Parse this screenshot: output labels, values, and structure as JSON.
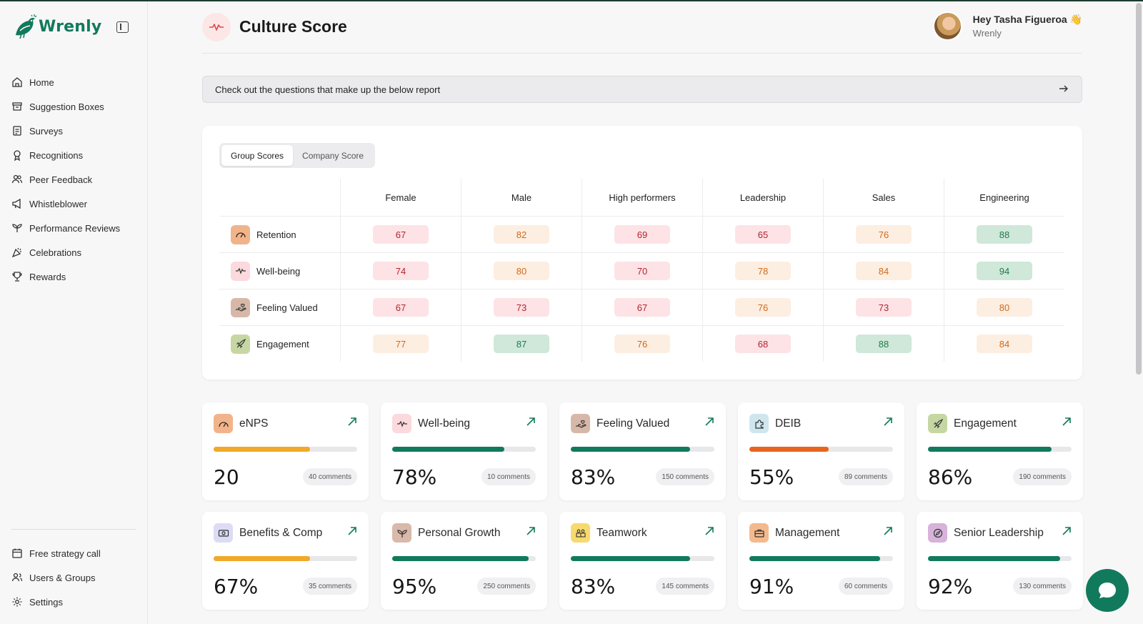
{
  "app": {
    "name": "Wrenly"
  },
  "sidebar": {
    "items": [
      {
        "label": "Home",
        "icon": "home-icon"
      },
      {
        "label": "Suggestion Boxes",
        "icon": "archive-icon"
      },
      {
        "label": "Surveys",
        "icon": "clipboard-icon"
      },
      {
        "label": "Recognitions",
        "icon": "badge-icon"
      },
      {
        "label": "Peer Feedback",
        "icon": "users-icon"
      },
      {
        "label": "Whistleblower",
        "icon": "megaphone-icon"
      },
      {
        "label": "Performance Reviews",
        "icon": "plant-icon"
      },
      {
        "label": "Celebrations",
        "icon": "party-icon"
      },
      {
        "label": "Rewards",
        "icon": "trophy-icon"
      }
    ],
    "bottom_items": [
      {
        "label": "Free strategy call",
        "icon": "calendar-icon"
      },
      {
        "label": "Users & Groups",
        "icon": "user-group-icon"
      },
      {
        "label": "Settings",
        "icon": "gear-icon"
      }
    ]
  },
  "header": {
    "title": "Culture Score",
    "user_greeting": "Hey Tasha Figueroa 👋",
    "user_org": "Wrenly"
  },
  "banner": {
    "text": "Check out the questions that make up the below report"
  },
  "score_table": {
    "tabs": [
      "Group Scores",
      "Company Score"
    ],
    "active_tab": "Group Scores",
    "columns": [
      "Female",
      "Male",
      "High performers",
      "Leadership",
      "Sales",
      "Engineering"
    ],
    "rows": [
      {
        "metric": "Retention",
        "icon": "gauge-icon",
        "values": [
          67,
          82,
          69,
          65,
          76,
          88
        ],
        "levels": [
          "red",
          "orange",
          "red",
          "red",
          "orange",
          "green"
        ]
      },
      {
        "metric": "Well-being",
        "icon": "heartbeat-icon",
        "values": [
          74,
          80,
          70,
          78,
          84,
          94
        ],
        "levels": [
          "red",
          "orange",
          "red",
          "orange",
          "orange",
          "green"
        ]
      },
      {
        "metric": "Feeling Valued",
        "icon": "hand-heart-icon",
        "values": [
          67,
          73,
          67,
          76,
          73,
          80
        ],
        "levels": [
          "red",
          "red",
          "red",
          "orange",
          "red",
          "orange"
        ]
      },
      {
        "metric": "Engagement",
        "icon": "rocket-icon",
        "values": [
          77,
          87,
          76,
          68,
          88,
          84
        ],
        "levels": [
          "orange",
          "green",
          "orange",
          "red",
          "green",
          "orange"
        ]
      }
    ]
  },
  "tiles": [
    {
      "name": "eNPS",
      "icon": "gauge-icon",
      "value": "20",
      "progress": 0.67,
      "bar_color": "#f0a92a",
      "comments": "40 comments"
    },
    {
      "name": "Well-being",
      "icon": "heartbeat-icon",
      "value": "78%",
      "progress": 0.78,
      "bar_color": "#127a5c",
      "comments": "10 comments"
    },
    {
      "name": "Feeling Valued",
      "icon": "hand-heart-icon",
      "value": "83%",
      "progress": 0.83,
      "bar_color": "#127a5c",
      "comments": "150 comments"
    },
    {
      "name": "DEIB",
      "icon": "puzzle-icon",
      "value": "55%",
      "progress": 0.55,
      "bar_color": "#e8641e",
      "comments": "89 comments"
    },
    {
      "name": "Engagement",
      "icon": "rocket-icon",
      "value": "86%",
      "progress": 0.86,
      "bar_color": "#127a5c",
      "comments": "190 comments"
    },
    {
      "name": "Benefits & Comp",
      "icon": "money-icon",
      "value": "67%",
      "progress": 0.67,
      "bar_color": "#f0a92a",
      "comments": "35 comments"
    },
    {
      "name": "Personal Growth",
      "icon": "sprout-icon",
      "value": "95%",
      "progress": 0.95,
      "bar_color": "#127a5c",
      "comments": "250 comments"
    },
    {
      "name": "Teamwork",
      "icon": "team-icon",
      "value": "83%",
      "progress": 0.83,
      "bar_color": "#127a5c",
      "comments": "145 comments"
    },
    {
      "name": "Management",
      "icon": "briefcase-icon",
      "value": "91%",
      "progress": 0.91,
      "bar_color": "#127a5c",
      "comments": "60 comments"
    },
    {
      "name": "Senior Leadership",
      "icon": "compass-icon",
      "value": "92%",
      "progress": 0.92,
      "bar_color": "#127a5c",
      "comments": "130 comments"
    }
  ],
  "colors": {
    "brand": "#127a5c",
    "red_bg": "#fde3e6",
    "red_text": "#b2232f",
    "orange_bg": "#fdeee2",
    "orange_text": "#d06a18",
    "green_bg": "#cfe8d9",
    "green_text": "#1f7a4c"
  }
}
